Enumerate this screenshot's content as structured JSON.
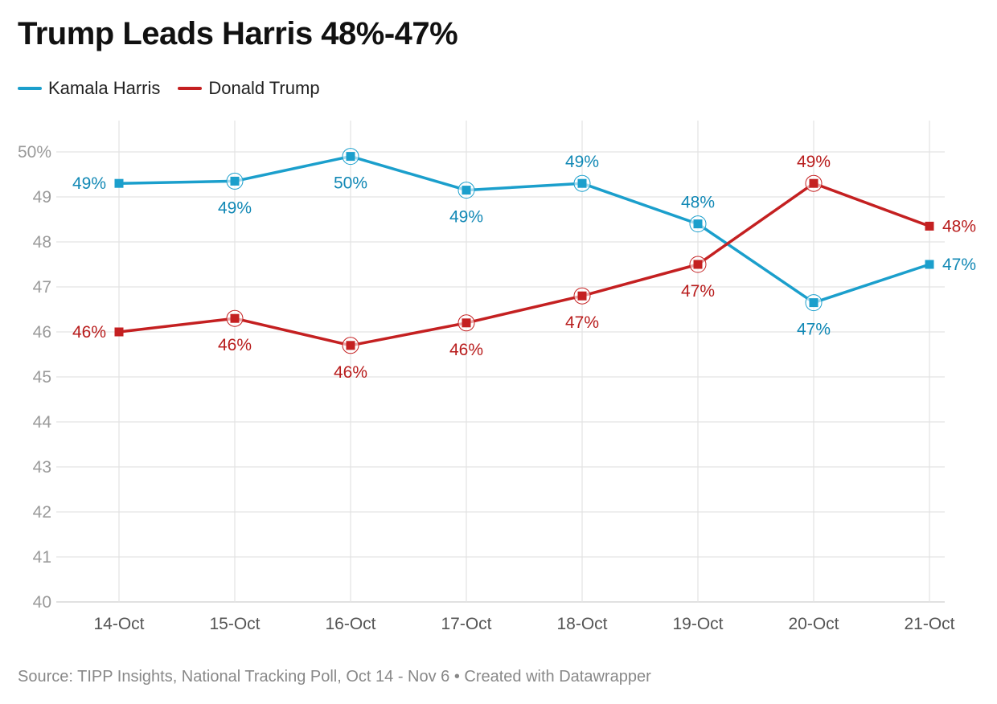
{
  "title": "Trump Leads Harris 48%-47%",
  "source": "Source: TIPP Insights, National Tracking Poll, Oct 14 - Nov 6 • Created with Datawrapper",
  "chart_data": {
    "type": "line",
    "title": "Trump Leads Harris 48%-47%",
    "categories": [
      "14-Oct",
      "15-Oct",
      "16-Oct",
      "17-Oct",
      "18-Oct",
      "19-Oct",
      "20-Oct",
      "21-Oct"
    ],
    "ylim": [
      40,
      50
    ],
    "yticks": [
      {
        "value": 50,
        "label": "50%"
      },
      {
        "value": 49,
        "label": "49"
      },
      {
        "value": 48,
        "label": "48"
      },
      {
        "value": 47,
        "label": "47"
      },
      {
        "value": 46,
        "label": "46"
      },
      {
        "value": 45,
        "label": "45"
      },
      {
        "value": 44,
        "label": "44"
      },
      {
        "value": 43,
        "label": "43"
      },
      {
        "value": 42,
        "label": "42"
      },
      {
        "value": 41,
        "label": "41"
      },
      {
        "value": 40,
        "label": "40"
      }
    ],
    "xlabel": "",
    "ylabel": "",
    "legend_position": "top-left",
    "series": [
      {
        "name": "Kamala Harris",
        "color": "#1b9fcc",
        "label_color": "#1188b5",
        "values": [
          49.3,
          49.35,
          49.9,
          49.15,
          49.3,
          48.4,
          46.65,
          47.5
        ],
        "labels": [
          "49%",
          "49%",
          "50%",
          "49%",
          "49%",
          "48%",
          "47%",
          "47%"
        ],
        "label_positions": [
          "left",
          "below",
          "below",
          "below",
          "above",
          "above",
          "below",
          "right"
        ]
      },
      {
        "name": "Donald Trump",
        "color": "#c42021",
        "label_color": "#b81c1c",
        "values": [
          46.0,
          46.3,
          45.7,
          46.2,
          46.8,
          47.5,
          49.3,
          48.35
        ],
        "labels": [
          "46%",
          "46%",
          "46%",
          "46%",
          "47%",
          "47%",
          "49%",
          "48%"
        ],
        "label_positions": [
          "left",
          "below",
          "below",
          "below",
          "below",
          "below",
          "above",
          "right"
        ]
      }
    ]
  }
}
